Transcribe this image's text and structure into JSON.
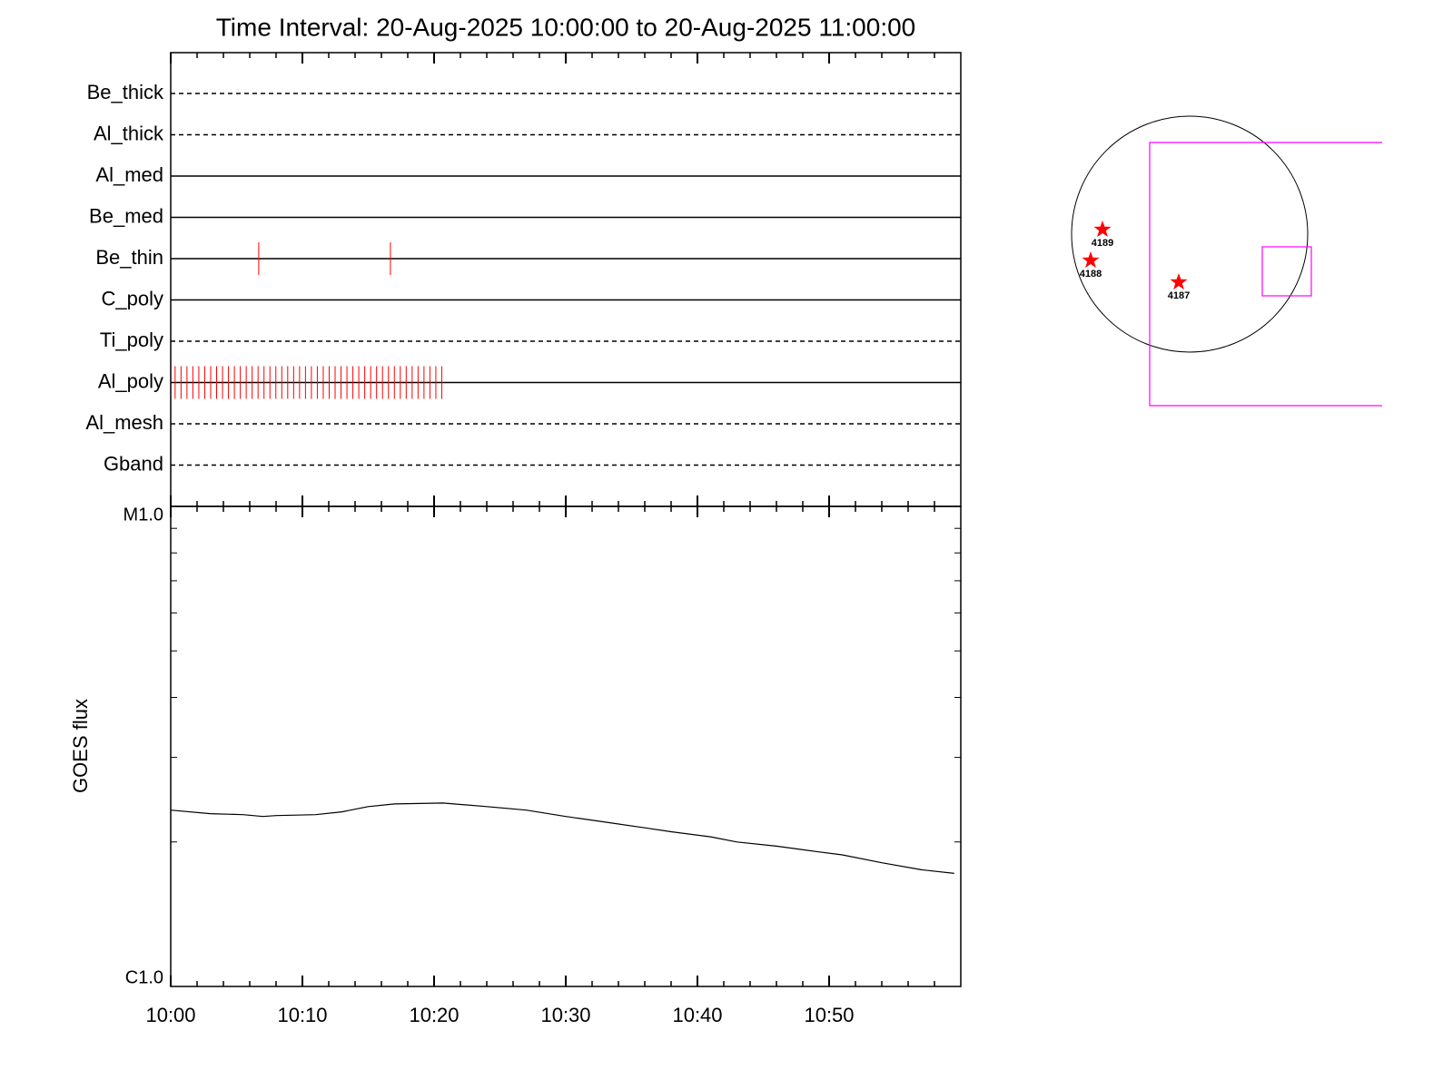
{
  "chart_data": [
    {
      "type": "timeline",
      "title": "Time Interval: 20-Aug-2025 10:00:00 to 20-Aug-2025 11:00:00",
      "xlim": [
        "10:00",
        "11:00"
      ],
      "categories": [
        "Be_thick",
        "Al_thick",
        "Al_med",
        "Be_med",
        "Be_thin",
        "C_poly",
        "Ti_poly",
        "Al_poly",
        "Al_mesh",
        "Gband"
      ],
      "line_styles": [
        "dashed",
        "dashed",
        "solid",
        "solid",
        "solid",
        "solid",
        "dashed",
        "solid",
        "dashed",
        "dashed"
      ],
      "event_color": "#ff0000",
      "events": [
        [],
        [],
        [],
        [],
        [
          "10:06:41",
          "10:16:41"
        ],
        [],
        [],
        [
          "10:00:20",
          "10:00:47",
          "10:01:14",
          "10:01:41",
          "10:02:08",
          "10:02:35",
          "10:03:02",
          "10:03:29",
          "10:03:56",
          "10:04:23",
          "10:04:50",
          "10:05:17",
          "10:05:44",
          "10:06:11",
          "10:06:38",
          "10:07:05",
          "10:07:32",
          "10:07:59",
          "10:08:26",
          "10:08:53",
          "10:09:20",
          "10:09:47",
          "10:10:14",
          "10:10:41",
          "10:11:08",
          "10:11:35",
          "10:12:02",
          "10:12:29",
          "10:12:56",
          "10:13:23",
          "10:13:50",
          "10:14:17",
          "10:14:44",
          "10:15:11",
          "10:15:38",
          "10:16:05",
          "10:16:32",
          "10:16:59",
          "10:17:26",
          "10:17:53",
          "10:18:20",
          "10:18:47",
          "10:19:14",
          "10:19:41",
          "10:20:08",
          "10:20:35"
        ],
        [],
        []
      ]
    },
    {
      "type": "line",
      "ylabel": "GOES flux",
      "color": "#000000",
      "ylog": true,
      "xlim": [
        "10:00",
        "11:00"
      ],
      "xticks": [
        "10:00",
        "10:10",
        "10:20",
        "10:30",
        "10:40",
        "10:50"
      ],
      "xminorticks": [
        "10:02",
        "10:04",
        "10:06",
        "10:08",
        "10:12",
        "10:14",
        "10:16",
        "10:18",
        "10:22",
        "10:24",
        "10:26",
        "10:28",
        "10:32",
        "10:34",
        "10:36",
        "10:38",
        "10:42",
        "10:44",
        "10:46",
        "10:48",
        "10:52",
        "10:54",
        "10:56",
        "10:58"
      ],
      "ylim": [
        1e-06,
        1e-05
      ],
      "yticks": [
        {
          "value": 1e-06,
          "label": "C1.0"
        },
        {
          "value": 1e-05,
          "label": "M1.0"
        }
      ],
      "yminorticks": [
        2e-06,
        3e-06,
        4e-06,
        5e-06,
        6e-06,
        7e-06,
        8e-06,
        9e-06
      ],
      "x": [
        "10:00",
        "10:03",
        "10:05:30",
        "10:07",
        "10:08",
        "10:11",
        "10:13",
        "10:15",
        "10:17",
        "10:20:40",
        "10:24",
        "10:27",
        "10:30",
        "10:33",
        "10:36",
        "10:38",
        "10:41",
        "10:43",
        "10:46",
        "10:49",
        "10:51",
        "10:54",
        "10:57",
        "10:59:30"
      ],
      "values": [
        2.33e-06,
        2.29e-06,
        2.28e-06,
        2.26e-06,
        2.27e-06,
        2.28e-06,
        2.31e-06,
        2.37e-06,
        2.4e-06,
        2.41e-06,
        2.37e-06,
        2.33e-06,
        2.26e-06,
        2.2e-06,
        2.14e-06,
        2.1e-06,
        2.05e-06,
        2e-06,
        1.96e-06,
        1.91e-06,
        1.88e-06,
        1.81e-06,
        1.75e-06,
        1.72e-06
      ]
    },
    {
      "type": "solar-map",
      "regions": [
        "4189",
        "4188",
        "4187"
      ],
      "marker_color": "#ff0000",
      "box_color": "#ff00ff"
    }
  ]
}
